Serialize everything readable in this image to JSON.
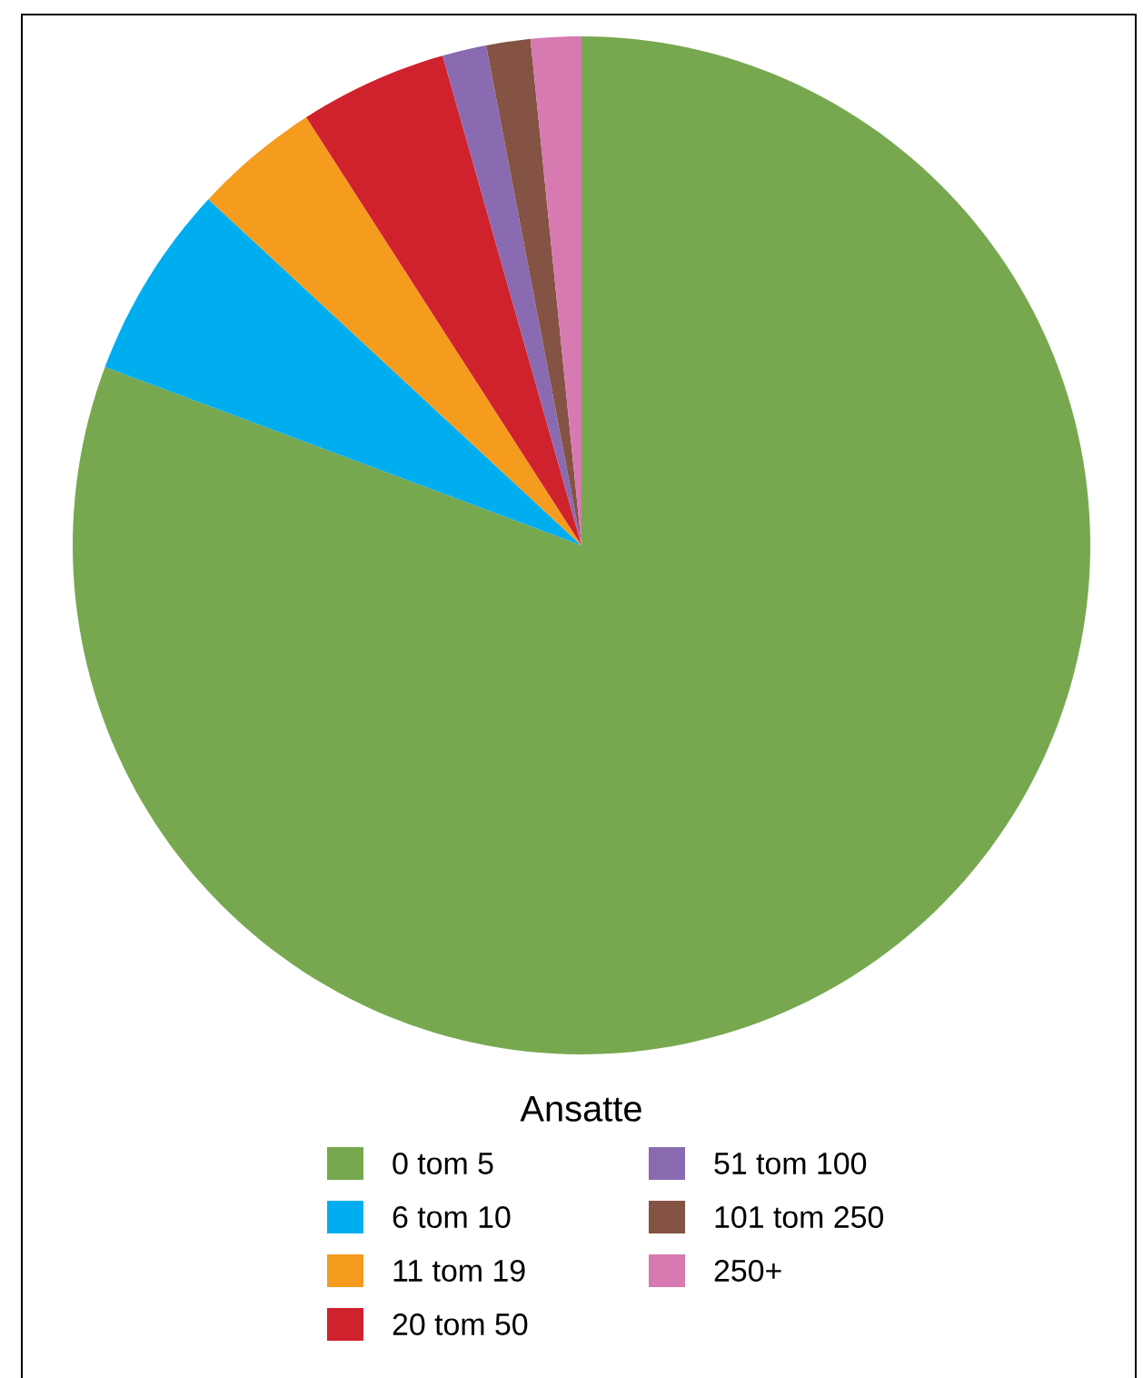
{
  "chart_data": {
    "type": "pie",
    "legend_title": "Ansatte",
    "legend": "bottom",
    "categories": [
      "0 tom 5",
      "6 tom 10",
      "11 tom 19",
      "20 tom 50",
      "51 tom 100",
      "101 tom 250",
      "250+"
    ],
    "values": [
      80.7,
      6.2,
      4.0,
      4.7,
      1.4,
      1.4,
      1.6
    ],
    "colors": [
      "#77a84f",
      "#00aeef",
      "#f59c1f",
      "#d0222d",
      "#8a6bb1",
      "#845344",
      "#d67ab1"
    ]
  }
}
